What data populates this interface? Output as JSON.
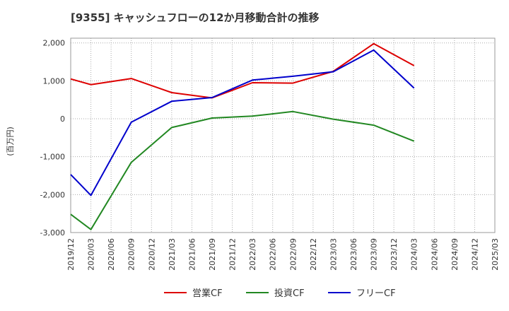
{
  "chart_data": {
    "type": "line",
    "title": "[9355]  キャッシュフローの12か月移動合計の推移",
    "ylabel": "(百万円)",
    "xlabel": "",
    "ylim": [
      -3000,
      2000
    ],
    "y_ticks": [
      2000,
      1000,
      0,
      -1000,
      -2000,
      -3000
    ],
    "y_tick_labels": [
      "2,000",
      "1,000",
      "0",
      "-1,000",
      "-2,000",
      "-3,000"
    ],
    "x_tick_labels": [
      "2019/12",
      "2020/03",
      "2020/06",
      "2020/09",
      "2020/12",
      "2021/03",
      "2021/06",
      "2021/09",
      "2021/12",
      "2022/03",
      "2022/06",
      "2022/09",
      "2022/12",
      "2023/03",
      "2023/06",
      "2023/09",
      "2023/12",
      "2024/03",
      "2024/06",
      "2024/09",
      "2024/12",
      "2025/03"
    ],
    "grid": true,
    "legend_position": "bottom",
    "series": [
      {
        "name": "営業CF",
        "color": "#dd0000",
        "x": [
          "2019/12",
          "2020/03",
          "2020/09",
          "2021/03",
          "2021/09",
          "2022/03",
          "2022/09",
          "2023/03",
          "2023/09",
          "2024/03"
        ],
        "values": [
          1050,
          900,
          1060,
          690,
          550,
          950,
          940,
          1250,
          1980,
          1400
        ]
      },
      {
        "name": "投資CF",
        "color": "#228822",
        "x": [
          "2019/12",
          "2020/03",
          "2020/09",
          "2021/03",
          "2021/09",
          "2022/03",
          "2022/09",
          "2023/03",
          "2023/09",
          "2024/03"
        ],
        "values": [
          -2520,
          -2920,
          -1150,
          -230,
          20,
          70,
          190,
          -10,
          -170,
          -590
        ]
      },
      {
        "name": "フリーCF",
        "color": "#0000cc",
        "x": [
          "2019/12",
          "2020/03",
          "2020/09",
          "2021/03",
          "2021/09",
          "2022/03",
          "2022/09",
          "2023/03",
          "2023/09",
          "2024/03"
        ],
        "values": [
          -1470,
          -2020,
          -90,
          460,
          560,
          1020,
          1120,
          1240,
          1810,
          810
        ]
      }
    ]
  }
}
